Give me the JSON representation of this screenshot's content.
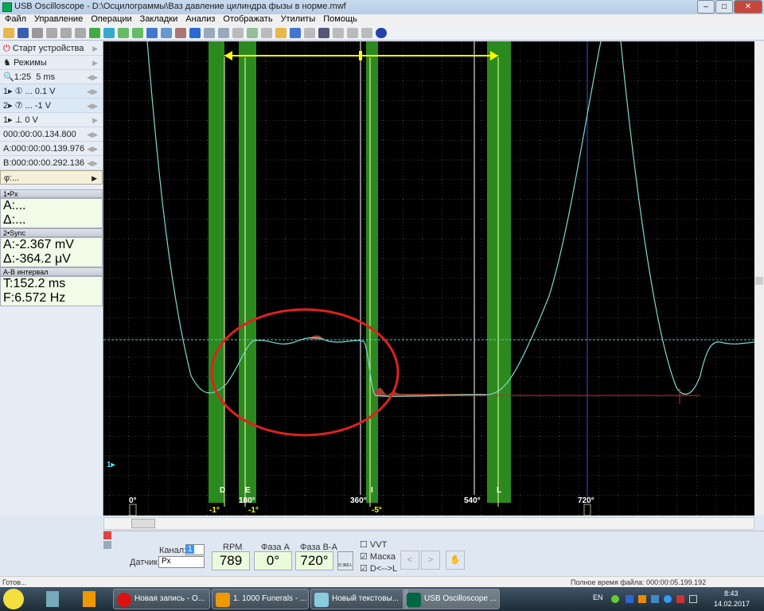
{
  "window": {
    "title": "USB Oscilloscope - D:\\Осцилограммы\\Ваз давление цилиндра  фызы в норме.mwf",
    "buttons": [
      "–",
      "□",
      "✕"
    ]
  },
  "menu": [
    "Файл",
    "Управление",
    "Операции",
    "Закладки",
    "Анализ",
    "Отображать",
    "Утилиты",
    "Помощь"
  ],
  "left": {
    "start": "Старт устройства",
    "modes": "Режимы",
    "zoom": "1:25",
    "timebase": "5 ms",
    "ch1": "1▸ ① ... 0.1 V",
    "ch2": "2▸ ⑦ ... -1 V",
    "trigger": "1▸ ⊥ 0 V",
    "trig_time": "000:00:00.134.800",
    "cursor_a": "A:000:00:00.139.976",
    "cursor_b": "B:000:00:00.292.136",
    "phi": "φ:...",
    "p1_head": "1•Px",
    "p1_a": "A:...",
    "p1_d": "Δ:...",
    "p2_head": "2•Sync",
    "p2_a": "A:-2.367 mV",
    "p2_d": "Δ:-364.2 μV",
    "p3_head": "A-B интервал",
    "p3_t": "T:152.2 ms",
    "p3_f": "F:6.572 Hz"
  },
  "plot": {
    "angles": [
      "0°",
      "180°",
      "360°",
      "540°",
      "720°"
    ],
    "markers": [
      "D",
      "E",
      "I",
      "L"
    ],
    "offsets": [
      "-1°",
      "-1°",
      "-5°"
    ],
    "channel_marker": "1▸",
    "colors": {
      "trace": "#7fd8d0",
      "band": "#2a8a1e",
      "cursor": "#ffff00",
      "ring": "#e02020"
    }
  },
  "bottom": {
    "channel_label": "Канал:",
    "channel_value": "1",
    "sensor_label": "Датчик:",
    "sensor_value": "Px",
    "rpm_label": "RPM",
    "rpm": "789",
    "phase_a_label": "Фаза A",
    "phase_a": "0°",
    "phase_ba_label": "Фаза B-A",
    "phase_ba": "720°",
    "dl_label": "D 360 L",
    "vvt": "VVT",
    "vvt_checked": false,
    "mask": "Маска",
    "mask_checked": true,
    "dl": "D<-->L",
    "dl_checked": true,
    "prev": "<",
    "next": ">"
  },
  "status": {
    "left": "Готов...",
    "right": "Полное время файла: 000:00:05.199.192"
  },
  "taskbar": {
    "tasks": [
      "Новая запись - О...",
      "1. 1000 Funerals - ...",
      "Новый текстовы...",
      "USB Oscilloscope ..."
    ],
    "lang": "EN",
    "time": "8:43",
    "date": "14.02.2017"
  }
}
